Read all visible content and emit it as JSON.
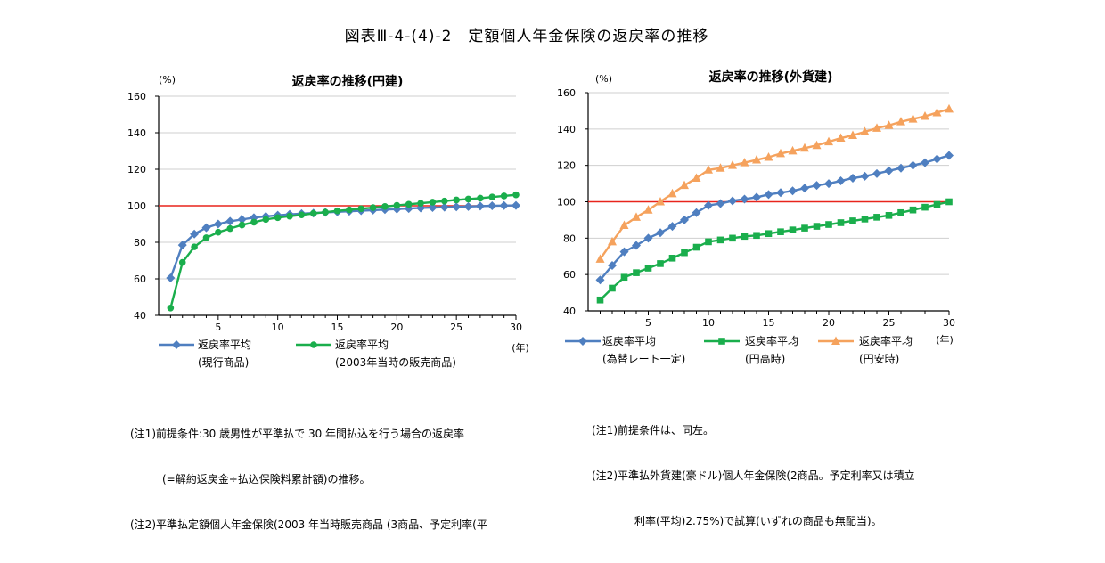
{
  "page": {
    "title": "図表Ⅲ-4-(4)-2　定額個人年金保険の返戻率の推移"
  },
  "chart_data": [
    {
      "type": "line",
      "title": "返戻率の推移(円建)",
      "y_unit": "(%)",
      "x_unit": "(年)",
      "xlim": [
        0,
        30
      ],
      "ylim": [
        40,
        160
      ],
      "yticks": [
        "40",
        "60",
        "80",
        "100",
        "120",
        "140",
        "160"
      ],
      "xticks": [
        "5",
        "10",
        "15",
        "20",
        "25",
        "30"
      ],
      "reference_line": {
        "value": 100,
        "color": "#e8241c"
      },
      "grid": true,
      "x": [
        1,
        2,
        3,
        4,
        5,
        6,
        7,
        8,
        9,
        10,
        11,
        12,
        13,
        14,
        15,
        16,
        17,
        18,
        19,
        20,
        21,
        22,
        23,
        24,
        25,
        26,
        27,
        28,
        29,
        30
      ],
      "series": [
        {
          "name": "返戻率平均",
          "name2": "(現行商品)",
          "color": "#4f7fc0",
          "marker": "diamond",
          "values": [
            60.5,
            78.5,
            84.5,
            88,
            90,
            91.5,
            92.5,
            93.5,
            94.2,
            94.8,
            95.3,
            95.7,
            96,
            96.4,
            96.7,
            97,
            97.3,
            97.6,
            97.9,
            98.2,
            98.5,
            98.8,
            99,
            99.2,
            99.4,
            99.6,
            99.8,
            100,
            100.1,
            100.2
          ]
        },
        {
          "name": "返戻率平均",
          "name2": "(2003年当時の販売商品)",
          "color": "#1aae4c",
          "marker": "circle",
          "values": [
            44,
            69,
            77.5,
            82.5,
            85.5,
            87.5,
            89.5,
            91,
            92.5,
            93.5,
            94.3,
            95,
            95.8,
            96.5,
            97.2,
            97.8,
            98.4,
            99,
            99.6,
            100.2,
            100.8,
            101.4,
            102,
            102.6,
            103.2,
            103.7,
            104.2,
            104.8,
            105.4,
            106
          ]
        }
      ]
    },
    {
      "type": "line",
      "title": "返戻率の推移(外貨建)",
      "y_unit": "(%)",
      "x_unit": "(年)",
      "xlim": [
        0,
        30
      ],
      "ylim": [
        40,
        160
      ],
      "yticks": [
        "40",
        "60",
        "80",
        "100",
        "120",
        "140",
        "160"
      ],
      "xticks": [
        "5",
        "10",
        "15",
        "20",
        "25",
        "30"
      ],
      "reference_line": {
        "value": 100,
        "color": "#e8241c"
      },
      "grid": true,
      "x": [
        1,
        2,
        3,
        4,
        5,
        6,
        7,
        8,
        9,
        10,
        11,
        12,
        13,
        14,
        15,
        16,
        17,
        18,
        19,
        20,
        21,
        22,
        23,
        24,
        25,
        26,
        27,
        28,
        29,
        30
      ],
      "series": [
        {
          "name": "返戻率平均",
          "name2": "(為替レート一定)",
          "color": "#4f7fc0",
          "marker": "diamond",
          "values": [
            57,
            65,
            72.5,
            76,
            80,
            83,
            86.5,
            90,
            94,
            98,
            99,
            100.5,
            101.5,
            102.5,
            104,
            105,
            106,
            107.5,
            109,
            110,
            111.5,
            113,
            114,
            115.5,
            117,
            118.5,
            120,
            121.5,
            123.5,
            125.5
          ]
        },
        {
          "name": "返戻率平均",
          "name2": "(円高時)",
          "color": "#1aae4c",
          "marker": "square",
          "values": [
            46,
            52.5,
            58.5,
            61,
            63.5,
            66,
            69,
            72,
            75,
            78,
            79,
            80,
            81,
            81.5,
            82.5,
            83.5,
            84.5,
            85.5,
            86.5,
            87.5,
            88.5,
            89.5,
            90.5,
            91.5,
            92.5,
            94,
            95.5,
            97,
            98.5,
            100
          ]
        },
        {
          "name": "返戻率平均",
          "name2": "(円安時)",
          "color": "#f5a25d",
          "marker": "triangle",
          "values": [
            68.5,
            78,
            87,
            91.5,
            95.5,
            100,
            104.5,
            109,
            113,
            117.5,
            118.5,
            120,
            121.5,
            123,
            124.5,
            126.5,
            128,
            129.5,
            131,
            133,
            135,
            136.5,
            138.5,
            140.5,
            142,
            144,
            145.5,
            147,
            149,
            151
          ]
        }
      ]
    }
  ],
  "notes_left": [
    "(注1)前提条件:30 歳男性が平準払で 30 年間払込を行う場合の返戻率",
    "　　　(=解約返戻金÷払込保険料累計額)の推移。",
    "(注2)平準払定額個人年金保険(2003 年当時販売商品 (3商品、予定利率(平"
  ],
  "notes_right": [
    "(注1)前提条件は、同左。",
    "(注2)平準払外貨建(豪ドル)個人年金保険(2商品。予定利率又は積立",
    "　　　　利率(平均)2.75%)で試算(いずれの商品も無配当)。"
  ]
}
